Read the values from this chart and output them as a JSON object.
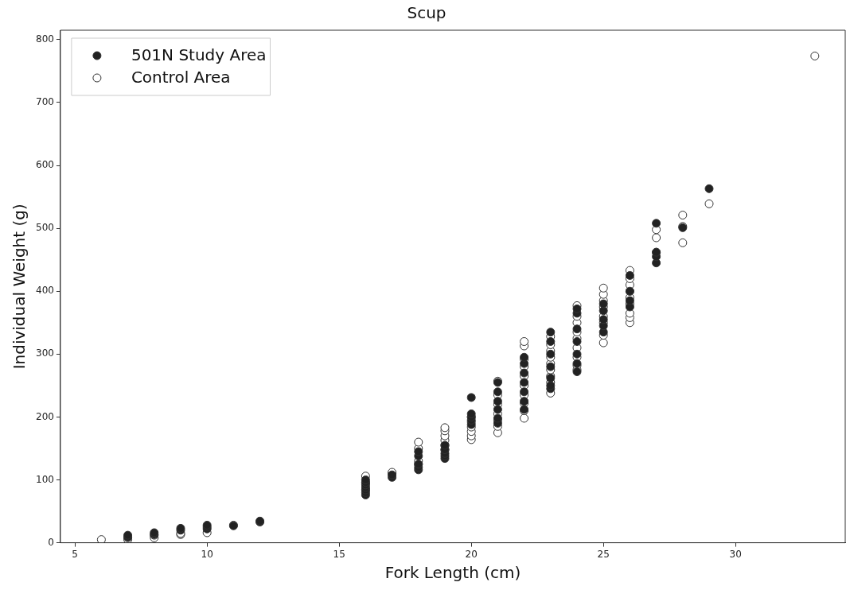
{
  "chart_data": {
    "type": "scatter",
    "title": "Scup",
    "xlabel": "Fork Length (cm)",
    "ylabel": "Individual Weight (g)",
    "xlim": [
      4.45,
      34.15
    ],
    "xticks": [
      5,
      10,
      15,
      20,
      25,
      30
    ],
    "ylim": [
      0,
      815
    ],
    "yticks": [
      0,
      100,
      200,
      300,
      400,
      500,
      600,
      700,
      800
    ],
    "grid": false,
    "legend": "top left",
    "marker": "circle",
    "series": [
      {
        "name": "501N Study Area",
        "color": "#222222",
        "x": [
          7,
          7,
          8,
          8,
          9,
          9,
          10,
          10,
          10,
          11,
          12,
          12,
          16,
          16,
          16,
          16,
          16,
          16,
          16,
          17,
          17,
          18,
          18,
          18,
          18,
          18,
          19,
          19,
          19,
          19,
          19,
          20,
          20,
          20,
          20,
          20,
          21,
          21,
          21,
          21,
          21,
          21,
          22,
          22,
          22,
          22,
          22,
          22,
          22,
          23,
          23,
          23,
          23,
          23,
          23,
          23,
          24,
          24,
          24,
          24,
          24,
          24,
          24,
          25,
          25,
          25,
          25,
          25,
          26,
          26,
          26,
          26,
          27,
          27,
          27,
          27,
          28,
          29
        ],
        "values": [
          9,
          12,
          13,
          16,
          20,
          23,
          22,
          25,
          28,
          27,
          33,
          34.5,
          76,
          80,
          84,
          88,
          92,
          96,
          100,
          104,
          108,
          116,
          120,
          125,
          138,
          145,
          134,
          138,
          142,
          148,
          155,
          188,
          195,
          200,
          205,
          231,
          190,
          198,
          212,
          225,
          240,
          255,
          212,
          225,
          240,
          255,
          270,
          285,
          295,
          245,
          250,
          262,
          280,
          300,
          320,
          335,
          272,
          285,
          300,
          320,
          340,
          365,
          372,
          335,
          345,
          355,
          369,
          380,
          375,
          385,
          400,
          425,
          445,
          455,
          462,
          508,
          501,
          563
        ]
      },
      {
        "name": "Control Area",
        "color": "#ffffff",
        "x": [
          6,
          7,
          7,
          8,
          8,
          9,
          9,
          10,
          11,
          16,
          16,
          16,
          17,
          17,
          18,
          18,
          18,
          18,
          19,
          19,
          19,
          19,
          19,
          19,
          20,
          20,
          20,
          20,
          20,
          20,
          21,
          21,
          21,
          21,
          21,
          21,
          21,
          22,
          22,
          22,
          22,
          22,
          22,
          22,
          22,
          22,
          22,
          23,
          23,
          23,
          23,
          23,
          23,
          23,
          23,
          23,
          24,
          24,
          24,
          24,
          24,
          24,
          24,
          24,
          24,
          25,
          25,
          25,
          25,
          25,
          25,
          25,
          25,
          26,
          26,
          26,
          26,
          26,
          26,
          26,
          26,
          26,
          27,
          27,
          27,
          28,
          28,
          28,
          29,
          33
        ],
        "values": [
          5,
          5,
          8,
          8,
          12,
          13,
          15,
          16,
          28,
          85,
          95,
          106,
          110,
          112,
          125,
          130,
          150,
          160,
          148,
          155,
          163,
          170,
          178,
          183,
          164,
          170,
          177,
          184,
          192,
          200,
          175,
          185,
          195,
          205,
          220,
          235,
          257,
          198,
          210,
          222,
          235,
          250,
          265,
          280,
          292,
          313,
          320,
          238,
          255,
          265,
          275,
          285,
          295,
          305,
          315,
          328,
          275,
          282,
          295,
          310,
          325,
          335,
          350,
          360,
          377,
          318,
          330,
          350,
          360,
          375,
          385,
          395,
          405,
          350,
          358,
          365,
          380,
          390,
          400,
          410,
          420,
          433,
          462,
          485,
          498,
          477,
          503,
          521,
          539,
          774
        ]
      }
    ]
  }
}
